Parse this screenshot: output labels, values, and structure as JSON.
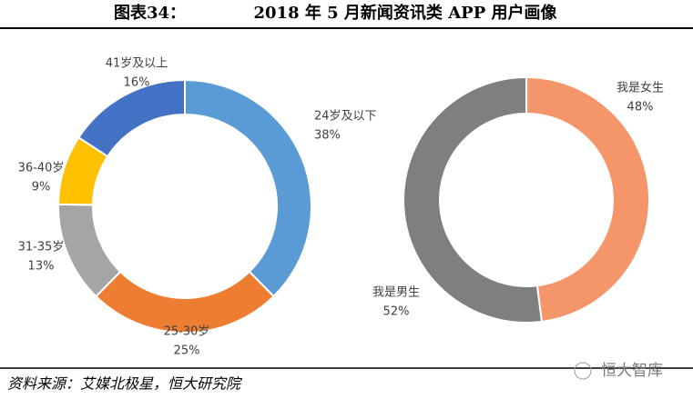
{
  "header": {
    "label": "图表34：",
    "title": "2018 年 5 月新闻资讯类 APP 用户画像"
  },
  "source": "资料来源：艾媒北极星，恒大研究院",
  "watermark": "恒大智库",
  "chart_data": [
    {
      "type": "donut",
      "categories": [
        "24岁及以下",
        "25-30岁",
        "31-35岁",
        "36-40岁",
        "41岁及以上"
      ],
      "values": [
        38,
        25,
        13,
        9,
        16
      ],
      "value_labels": [
        "38%",
        "25%",
        "13%",
        "9%",
        "16%"
      ],
      "colors": [
        "#5b9bd5",
        "#ed7d31",
        "#a5a5a5",
        "#ffc000",
        "#4472c4"
      ]
    },
    {
      "type": "donut",
      "categories": [
        "我是女生",
        "我是男生"
      ],
      "values": [
        48,
        52
      ],
      "value_labels": [
        "48%",
        "52%"
      ],
      "colors": [
        "#f4956a",
        "#7f7f7f"
      ]
    }
  ]
}
